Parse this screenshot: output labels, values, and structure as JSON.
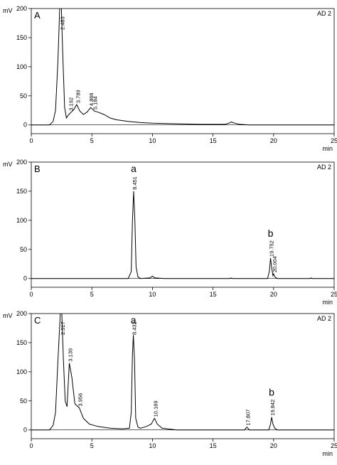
{
  "chart_data": [
    {
      "type": "line",
      "panel_label": "A",
      "detector": "AD 2",
      "ylabel": "mV",
      "xlabel": "min",
      "xlim": [
        0,
        25
      ],
      "ylim": [
        -15,
        200
      ],
      "xticks": [
        0,
        5,
        10,
        15,
        20,
        25
      ],
      "yticks": [
        0,
        50,
        100,
        150,
        200
      ],
      "grid": false,
      "series": [
        {
          "x": [
            0,
            1.5,
            1.8,
            2.0,
            2.2,
            2.35,
            2.48,
            2.6,
            2.75,
            2.9,
            3.1,
            3.3,
            3.5,
            3.75,
            4.0,
            4.3,
            4.6,
            4.9,
            5.2,
            5.5,
            6.0,
            6.5,
            7.0,
            8.0,
            9.0,
            10.0,
            12.0,
            14.0,
            16.0,
            16.3,
            16.5,
            16.8,
            17.2,
            18.0,
            20.0,
            22.0,
            25.0
          ],
          "y": [
            0,
            0,
            6,
            25,
            110,
            210,
            210,
            120,
            30,
            12,
            18,
            22,
            26,
            35,
            24,
            18,
            22,
            30,
            24,
            22,
            18,
            12,
            9,
            6,
            4,
            3,
            2,
            1,
            1,
            3,
            5,
            3,
            1,
            0,
            0,
            0,
            0
          ]
        }
      ],
      "peak_labels": [
        {
          "text": "2.483",
          "x": 2.483,
          "y": 200
        },
        {
          "text": "3.192",
          "x": 3.192,
          "y": 22
        },
        {
          "text": "3.789",
          "x": 3.789,
          "y": 35
        },
        {
          "text": "4.866",
          "x": 4.866,
          "y": 30
        },
        {
          "text": "5.184",
          "x": 5.184,
          "y": 24
        }
      ],
      "annotations": []
    },
    {
      "type": "line",
      "panel_label": "B",
      "detector": "AD 2",
      "ylabel": "mV",
      "xlabel": "min",
      "xlim": [
        0,
        25
      ],
      "ylim": [
        -15,
        200
      ],
      "xticks": [
        0,
        5,
        10,
        15,
        20,
        25
      ],
      "yticks": [
        0,
        50,
        100,
        150,
        200
      ],
      "grid": false,
      "series": [
        {
          "x": [
            0,
            8.0,
            8.25,
            8.35,
            8.45,
            8.55,
            8.65,
            8.8,
            9.0,
            9.8,
            10.0,
            10.2,
            11.0,
            16.4,
            16.5,
            16.6,
            19.5,
            19.65,
            19.75,
            19.85,
            19.95,
            20.0,
            20.1,
            20.3,
            23.0,
            23.1,
            23.2,
            25.0
          ],
          "y": [
            0,
            0,
            12,
            100,
            150,
            100,
            20,
            3,
            0,
            1,
            4,
            1,
            0,
            0,
            1,
            0,
            0,
            12,
            35,
            18,
            5,
            8,
            3,
            0,
            0,
            1,
            0,
            0
          ]
        }
      ],
      "peak_labels": [
        {
          "text": "8.451",
          "x": 8.451,
          "y": 150
        },
        {
          "text": "19.752",
          "x": 19.752,
          "y": 35
        },
        {
          "text": "20.004",
          "x": 20.004,
          "y": 8
        }
      ],
      "annotations": [
        {
          "text": "a",
          "x": 8.45,
          "y": 150
        },
        {
          "text": "b",
          "x": 19.75,
          "y": 35
        }
      ]
    },
    {
      "type": "line",
      "panel_label": "C",
      "detector": "AD 2",
      "ylabel": "mV",
      "xlabel": "min",
      "xlim": [
        0,
        25
      ],
      "ylim": [
        -15,
        200
      ],
      "xticks": [
        0,
        5,
        10,
        15,
        20,
        25
      ],
      "yticks": [
        0,
        50,
        100,
        150,
        200
      ],
      "grid": false,
      "series": [
        {
          "x": [
            0,
            1.5,
            1.8,
            2.0,
            2.2,
            2.4,
            2.52,
            2.65,
            2.8,
            2.95,
            3.14,
            3.35,
            3.6,
            3.96,
            4.3,
            4.8,
            5.5,
            6.5,
            7.5,
            8.1,
            8.25,
            8.35,
            8.43,
            8.52,
            8.62,
            8.8,
            9.0,
            9.5,
            9.9,
            10.17,
            10.4,
            10.8,
            12.0,
            17.6,
            17.8,
            18.0,
            19.6,
            19.75,
            19.84,
            19.95,
            20.1,
            20.3,
            25.0
          ],
          "y": [
            0,
            0,
            8,
            30,
            120,
            210,
            210,
            120,
            50,
            40,
            115,
            90,
            45,
            38,
            20,
            10,
            6,
            3,
            2,
            3,
            30,
            130,
            163,
            120,
            20,
            5,
            3,
            6,
            10,
            20,
            10,
            3,
            0,
            0,
            5,
            0,
            0,
            10,
            22,
            10,
            3,
            0,
            0
          ]
        }
      ],
      "peak_labels": [
        {
          "text": "2.517",
          "x": 2.517,
          "y": 200
        },
        {
          "text": "3.139",
          "x": 3.139,
          "y": 115
        },
        {
          "text": "3.956",
          "x": 3.956,
          "y": 38
        },
        {
          "text": "8.432",
          "x": 8.432,
          "y": 163
        },
        {
          "text": "10.169",
          "x": 10.169,
          "y": 20
        },
        {
          "text": "17.807",
          "x": 17.807,
          "y": 5
        },
        {
          "text": "19.842",
          "x": 19.842,
          "y": 22
        }
      ],
      "annotations": [
        {
          "text": "a",
          "x": 8.43,
          "y": 163
        },
        {
          "text": "b",
          "x": 19.84,
          "y": 22
        }
      ]
    }
  ]
}
